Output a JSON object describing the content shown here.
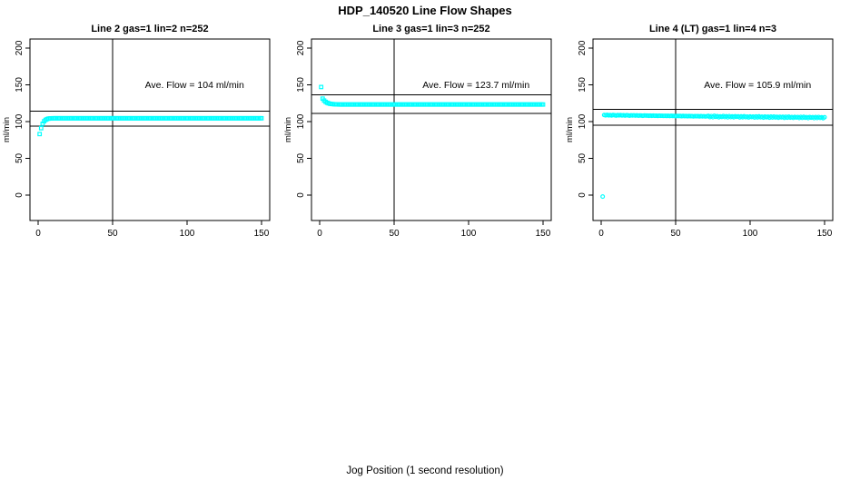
{
  "figure": {
    "main_title": "HDP_140520  Line Flow Shapes",
    "x_axis_label": "Jog Position (1 second resolution)"
  },
  "chart_data": {
    "type": "scatter",
    "title": "HDP_140520  Line Flow Shapes",
    "xlabel": "Jog Position (1 second resolution)",
    "ylabel": "ml/min",
    "x_ticks": [
      0,
      50,
      100,
      150
    ],
    "y_ticks": [
      0,
      50,
      100,
      150,
      200
    ],
    "xlim": [
      -5.5,
      155.5
    ],
    "ylim": [
      -34.6,
      212.3
    ],
    "grid": false,
    "marker_color": "#00FFFF",
    "axis_color": "#000000",
    "annotation_pos": {
      "x": 105,
      "y": 150
    },
    "panels": [
      {
        "title": "Line 2 gas=1 lin=2 n=252",
        "annotation": "Ave. Flow =  104  ml/min",
        "ave_flow": 104,
        "hlines": [
          114.4,
          93.6
        ],
        "vline": 50,
        "marker": "square",
        "x_start": 1,
        "x_step": 1,
        "y_values": [
          83,
          91,
          97,
          100.4,
          102.3,
          103.4,
          104,
          104.3,
          104.4,
          104.5,
          104.5,
          104.5,
          104.5,
          104.5,
          104.5,
          104.5,
          104.5,
          104.5,
          104.5,
          104.5,
          104.5,
          104.5,
          104.5,
          104.5,
          104.5,
          104.5,
          104.5,
          104.5,
          104.5,
          104.5,
          104.5,
          104.5,
          104.5,
          104.5,
          104.5,
          104.5,
          104.5,
          104.5,
          104.5,
          104.5,
          104.5,
          104.5,
          104.5,
          104.5,
          104.5,
          104.5,
          104.5,
          104.5,
          104.5,
          104.5,
          104.5,
          104.5,
          104.5,
          104.5,
          104.5,
          104.5,
          104.5,
          104.5,
          104.5,
          104.5,
          104.5,
          104.5,
          104.5,
          104.5,
          104.5,
          104.5,
          104.5,
          104.5,
          104.5,
          104.5,
          104.5,
          104.5,
          104.5,
          104.5,
          104.5,
          104.5,
          104.5,
          104.5,
          104.5,
          104.5,
          104.5,
          104.5,
          104.5,
          104.5,
          104.5,
          104.5,
          104.5,
          104.5,
          104.5,
          104.5,
          104.5,
          104.5,
          104.5,
          104.5,
          104.5,
          104.5,
          104.5,
          104.5,
          104.5,
          104.5,
          104.5,
          104.5,
          104.5,
          104.5,
          104.5,
          104.5,
          104.5,
          104.5,
          104.5,
          104.5,
          104.5,
          104.5,
          104.5,
          104.5,
          104.5,
          104.5,
          104.5,
          104.5,
          104.5,
          104.5,
          104.5,
          104.5,
          104.5,
          104.5,
          104.5,
          104.5,
          104.5,
          104.5,
          104.5,
          104.5,
          104.5,
          104.5,
          104.5,
          104.5,
          104.5,
          104.5,
          104.5,
          104.5,
          104.5,
          104.5,
          104.5,
          104.5,
          104.5,
          104.5,
          104.5,
          104.5,
          104.5,
          104.5,
          104.5,
          104.5
        ]
      },
      {
        "title": "Line 3 gas=1 lin=3 n=252",
        "annotation": "Ave. Flow =  123.7  ml/min",
        "ave_flow": 123.7,
        "hlines": [
          136.1,
          111.3
        ],
        "vline": 50,
        "marker": "square",
        "x_start": 1,
        "x_step": 1,
        "y_values": [
          147,
          131.2,
          128.6,
          126.8,
          125.6,
          124.8,
          124.2,
          123.9,
          123.7,
          123.5,
          123.4,
          123.3,
          123.2,
          123.2,
          123.2,
          123.2,
          123.2,
          123.2,
          123.2,
          123.2,
          123.2,
          123.2,
          123.2,
          123.2,
          123.2,
          123.2,
          123.2,
          123.2,
          123.2,
          123.2,
          123.2,
          123.2,
          123.2,
          123.2,
          123.2,
          123.2,
          123.2,
          123.2,
          123.2,
          123.2,
          123.2,
          123.2,
          123.2,
          123.2,
          123.2,
          123.2,
          123.2,
          123.2,
          123.2,
          123.2,
          123.2,
          123.2,
          123.2,
          123.2,
          123.2,
          123.2,
          123.2,
          123.2,
          123.2,
          123.2,
          123.2,
          123.2,
          123.2,
          123.2,
          123.2,
          123.2,
          123.2,
          123.2,
          123.2,
          123.2,
          123.2,
          123.2,
          123.2,
          123.2,
          123.2,
          123.2,
          123.2,
          123.2,
          123.2,
          123.2,
          123.2,
          123.2,
          123.2,
          123.2,
          123.2,
          123.2,
          123.2,
          123.2,
          123.2,
          123.2,
          123.2,
          123.2,
          123.2,
          123.2,
          123.2,
          123.2,
          123.2,
          123.2,
          123.2,
          123.2,
          123.2,
          123.2,
          123.2,
          123.2,
          123.2,
          123.2,
          123.2,
          123.2,
          123.2,
          123.2,
          123.2,
          123.2,
          123.2,
          123.2,
          123.2,
          123.2,
          123.2,
          123.2,
          123.2,
          123.2,
          123.2,
          123.2,
          123.2,
          123.2,
          123.2,
          123.2,
          123.2,
          123.2,
          123.2,
          123.2,
          123.2,
          123.2,
          123.2,
          123.2,
          123.2,
          123.2,
          123.2,
          123.2,
          123.2,
          123.2,
          123.2,
          123.2,
          123.2,
          123.2,
          123.2,
          123.2,
          123.2,
          123.2,
          123.2,
          123.2
        ]
      },
      {
        "title": "Line 4 (LT) gas=1 lin=4 n=3",
        "annotation": "Ave. Flow =  105.9  ml/min",
        "ave_flow": 105.9,
        "hlines": [
          116.5,
          95.3
        ],
        "vline": 50,
        "marker": "circle",
        "x_start": 1,
        "x_step": 1,
        "y_values": [
          -2,
          108.9,
          108.5,
          109.0,
          108.4,
          108.8,
          108.3,
          108.9,
          108.6,
          108.2,
          108.7,
          108.4,
          108.8,
          108.3,
          108.6,
          108.1,
          108.6,
          108.4,
          108.0,
          108.5,
          108.3,
          108.5,
          108.1,
          108.4,
          108.0,
          108.3,
          108.2,
          107.9,
          108.3,
          108.1,
          108.2,
          107.9,
          108.2,
          107.8,
          108.1,
          107.9,
          108.0,
          107.7,
          108.0,
          107.8,
          107.9,
          107.7,
          107.9,
          107.6,
          107.8,
          107.5,
          107.8,
          107.6,
          107.7,
          107.4,
          107.7,
          107.5,
          107.6,
          107.3,
          107.6,
          107.4,
          107.5,
          107.2,
          107.5,
          107.3,
          107.4,
          107.1,
          107.4,
          107.2,
          107.3,
          107.0,
          107.3,
          107.1,
          107.2,
          106.9,
          107.2,
          107.6,
          106.2,
          107.4,
          106.0,
          107.8,
          106.5,
          107.3,
          105.9,
          107.1,
          106.3,
          107.5,
          106.1,
          107.2,
          105.8,
          107.4,
          106.2,
          107.0,
          105.9,
          107.2,
          106.4,
          107.1,
          105.7,
          107.0,
          105.9,
          107.2,
          106.0,
          106.8,
          105.6,
          106.9,
          106.1,
          106.8,
          105.5,
          106.9,
          105.7,
          107.0,
          105.8,
          106.6,
          105.4,
          106.7,
          105.9,
          106.6,
          105.3,
          106.7,
          105.5,
          106.8,
          105.6,
          106.4,
          105.2,
          106.5,
          105.7,
          106.4,
          105.1,
          106.5,
          105.3,
          106.6,
          105.4,
          106.2,
          105.0,
          106.3,
          105.5,
          106.2,
          104.9,
          106.3,
          105.1,
          106.4,
          105.2,
          106.0,
          104.8,
          106.1,
          105.3,
          106.0,
          104.7,
          106.1,
          104.9,
          106.2,
          105.0,
          105.8,
          104.6,
          105.9
        ]
      }
    ]
  }
}
